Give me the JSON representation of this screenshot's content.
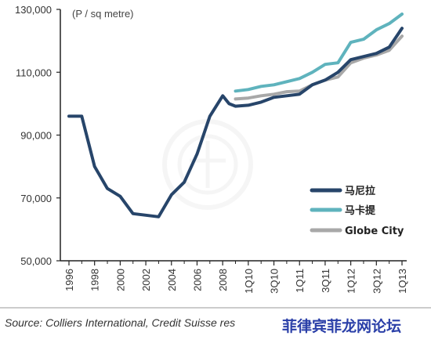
{
  "chart_data": {
    "type": "line",
    "unit_label": "(P / sq metre)",
    "source": "Source: Colliers International, Credit Suisse res",
    "watermark": "菲律宾菲龙网论坛",
    "y_ticks": [
      "130,000",
      "110,000",
      "90,000",
      "70,000",
      "50,000"
    ],
    "y_tick_values": [
      130000,
      110000,
      90000,
      70000,
      50000
    ],
    "ylim": [
      50000,
      130000
    ],
    "grid": false,
    "legend_position": "right",
    "x_tick_labels": [
      "1996",
      "1998",
      "2000",
      "2002",
      "2004",
      "2006",
      "2008",
      "1Q10",
      "3Q10",
      "1Q11",
      "3Q11",
      "1Q12",
      "3Q12",
      "1Q13"
    ],
    "x_tick_pos": [
      0,
      2,
      4,
      6,
      8,
      10,
      12,
      14,
      16,
      18,
      20,
      22,
      24,
      26
    ],
    "x_ticks_minor": [
      1,
      3,
      5,
      7,
      9,
      11,
      13,
      15,
      17,
      19,
      21,
      23,
      25
    ],
    "xlim": [
      0,
      26
    ],
    "series": [
      {
        "name": "马尼拉",
        "color": "#27456a",
        "x": [
          0,
          1,
          2,
          3,
          4,
          5,
          6,
          7,
          8,
          9,
          10,
          11,
          12,
          12.5,
          13,
          14,
          15,
          16,
          17,
          18,
          19,
          20,
          21,
          22,
          23,
          24,
          25,
          26
        ],
        "y": [
          96000,
          96000,
          80000,
          73000,
          70500,
          65000,
          64500,
          64000,
          71000,
          75000,
          84000,
          96000,
          102500,
          100000,
          99200,
          99500,
          100500,
          102000,
          102500,
          103000,
          106000,
          107500,
          110000,
          114000,
          115000,
          116000,
          118000,
          124000
        ]
      },
      {
        "name": "马卡提",
        "color": "#5fb3bd",
        "x": [
          13,
          14,
          15,
          16,
          17,
          18,
          19,
          20,
          21,
          22,
          23,
          24,
          25,
          26
        ],
        "y": [
          104000,
          104500,
          105500,
          106000,
          107000,
          108000,
          110000,
          112500,
          113000,
          119500,
          120500,
          123500,
          125500,
          128500
        ]
      },
      {
        "name": "Globe City",
        "color": "#a8a8a8",
        "x": [
          13,
          14,
          15,
          16,
          17,
          18,
          19,
          20,
          21,
          22,
          23,
          24,
          25,
          26
        ],
        "y": [
          101500,
          101800,
          102500,
          103000,
          103800,
          104000,
          106000,
          107500,
          108500,
          113000,
          114500,
          115500,
          117000,
          121500
        ]
      }
    ]
  }
}
